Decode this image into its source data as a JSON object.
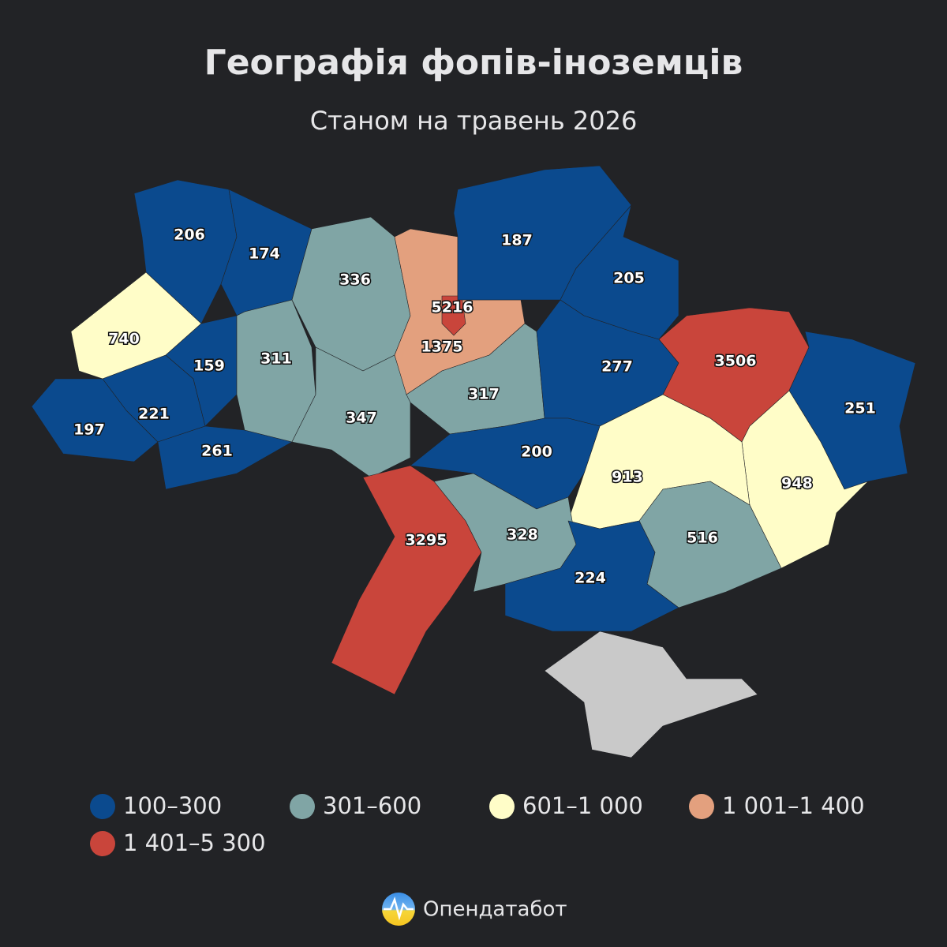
{
  "header": {
    "title": "Географія фопів-іноземців",
    "subtitle": "Станом на травень 2026"
  },
  "map": {
    "regions": [
      {
        "value": 206,
        "color": "#0b4a8e"
      },
      {
        "value": 174,
        "color": "#0b4a8e"
      },
      {
        "value": 740,
        "color": "#fffdc8"
      },
      {
        "value": 197,
        "color": "#0b4a8e"
      },
      {
        "value": 221,
        "color": "#0b4a8e"
      },
      {
        "value": 261,
        "color": "#0b4a8e"
      },
      {
        "value": 159,
        "color": "#0b4a8e"
      },
      {
        "value": 311,
        "color": "#80a5a5"
      },
      {
        "value": 336,
        "color": "#80a5a5"
      },
      {
        "value": 347,
        "color": "#80a5a5"
      },
      {
        "value": 1375,
        "color": "#e3a07e"
      },
      {
        "value": 5216,
        "color": "#c9453b"
      },
      {
        "value": 187,
        "color": "#0b4a8e"
      },
      {
        "value": 205,
        "color": "#0b4a8e"
      },
      {
        "value": 317,
        "color": "#80a5a5"
      },
      {
        "value": 277,
        "color": "#0b4a8e"
      },
      {
        "value": 3506,
        "color": "#c9453b"
      },
      {
        "value": 251,
        "color": "#0b4a8e"
      },
      {
        "value": 948,
        "color": "#fffdc8"
      },
      {
        "value": 913,
        "color": "#fffdc8"
      },
      {
        "value": 200,
        "color": "#0b4a8e"
      },
      {
        "value": 3295,
        "color": "#c9453b"
      },
      {
        "value": 328,
        "color": "#80a5a5"
      },
      {
        "value": 516,
        "color": "#80a5a5"
      },
      {
        "value": 224,
        "color": "#0b4a8e"
      }
    ]
  },
  "legend": [
    {
      "label": "100–300",
      "color": "#0b4a8e"
    },
    {
      "label": "301–600",
      "color": "#80a5a5"
    },
    {
      "label": "601–1 000",
      "color": "#fffdc8"
    },
    {
      "label": "1 001–1 400",
      "color": "#e3a07e"
    },
    {
      "label": "1 401–5 300",
      "color": "#c9453b"
    }
  ],
  "footer": {
    "brand": "Опендатабот"
  }
}
